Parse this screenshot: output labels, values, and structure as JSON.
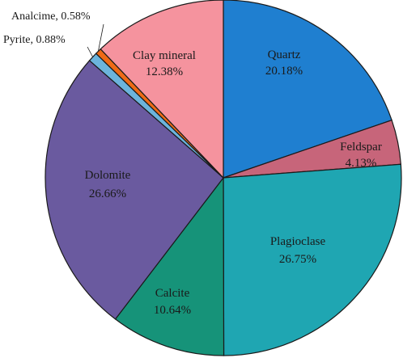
{
  "chart_data": {
    "type": "pie",
    "title": "",
    "slices": [
      {
        "name": "Quartz",
        "value": 20.18,
        "label": "20.18%",
        "color": "#1f7fd0"
      },
      {
        "name": "Feldspar",
        "value": 4.13,
        "label": "4.13%",
        "color": "#c7657a"
      },
      {
        "name": "Plagioclase",
        "value": 26.75,
        "label": "26.75%",
        "color": "#1fa6b2"
      },
      {
        "name": "Calcite",
        "value": 10.64,
        "label": "10.64%",
        "color": "#169379"
      },
      {
        "name": "Dolomite",
        "value": 26.66,
        "label": "26.66%",
        "color": "#6a5a9f"
      },
      {
        "name": "Pyrite",
        "value": 0.88,
        "label": "Pyrite, 0.88%",
        "color": "#6cb4dc"
      },
      {
        "name": "Analcime",
        "value": 0.58,
        "label": "Analcime, 0.58%",
        "color": "#ee6a16"
      },
      {
        "name": "Clay mineral",
        "value": 12.38,
        "label": "12.38%",
        "color": "#f5939e"
      }
    ],
    "start": "12 o'clock",
    "direction": "clockwise"
  }
}
